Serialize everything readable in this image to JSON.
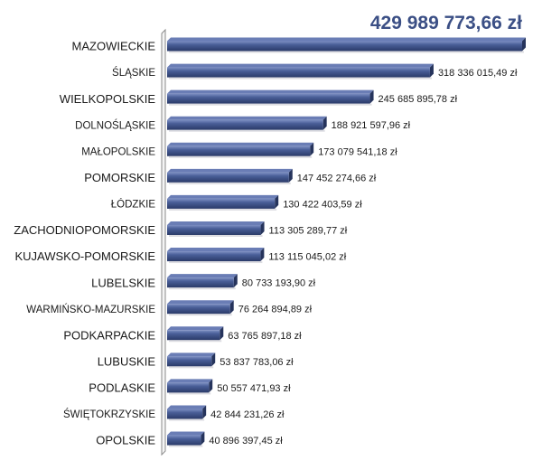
{
  "chart_data": {
    "type": "bar",
    "orientation": "horizontal",
    "categories": [
      "MAZOWIECKIE",
      "ŚLĄSKIE",
      "WIELKOPOLSKIE",
      "DOLNOŚLĄSKIE",
      "MAŁOPOLSKIE",
      "POMORSKIE",
      "ŁÓDZKIE",
      "ZACHODNIOPOMORSKIE",
      "KUJAWSKO-POMORSKIE",
      "LUBELSKIE",
      "WARMIŃSKO-MAZURSKIE",
      "PODKARPACKIE",
      "LUBUSKIE",
      "PODLASKIE",
      "ŚWIĘTOKRZYSKIE",
      "OPOLSKIE"
    ],
    "values": [
      429989773.66,
      318336015.49,
      245685895.78,
      188921597.96,
      173079541.18,
      147452274.66,
      130422403.59,
      113305289.77,
      113115045.02,
      80733193.9,
      76264894.89,
      63765897.18,
      53837783.06,
      50557471.93,
      42844231.26,
      40896397.45
    ],
    "value_labels": [
      "429 989 773,66 zł",
      "318 336 015,49 zł",
      "245 685 895,78 zł",
      "188 921 597,96 zł",
      "173 079 541,18 zł",
      "147 452 274,66 zł",
      "130 422 403,59 zł",
      "113 305 289,77 zł",
      "113 115 045,02 zł",
      "80 733 193,90 zł",
      "76 264 894,89 zł",
      "63 765 897,18 zł",
      "53 837 783,06 zł",
      "50 557 471,93 zł",
      "42 844 231,26 zł",
      "40 896 397,45 zł"
    ],
    "title": "",
    "xlabel": "",
    "ylabel": "",
    "xlim": [
      0,
      429989773.66
    ],
    "grid": false,
    "legend": "none",
    "colors": {
      "bar": "#3b4f85",
      "bar_light": "#6a7db5",
      "bar_dark": "#26345c",
      "top_label": "#3b4f85"
    }
  }
}
